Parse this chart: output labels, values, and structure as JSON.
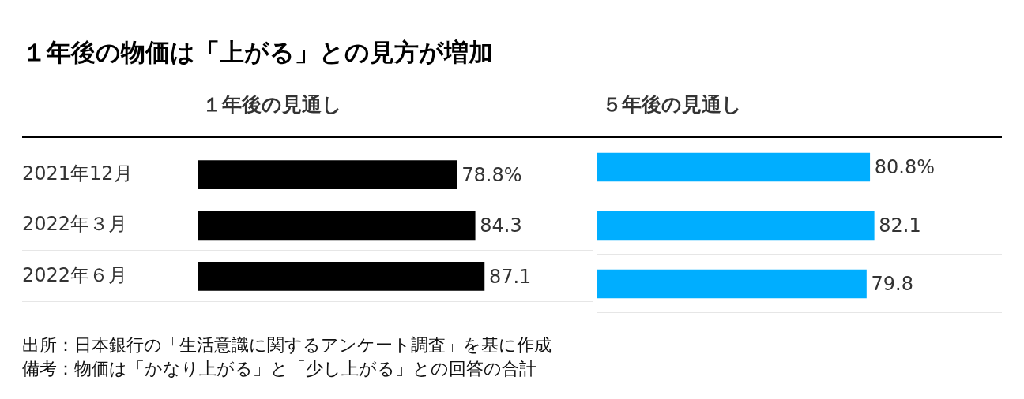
{
  "chart_data": [
    {
      "type": "bar",
      "orientation": "horizontal",
      "title": "１年後の物価は「上がる」との見方が増加",
      "subtitle": "１年後の見通し",
      "categories": [
        "2021年12月",
        "2022年３月",
        "2022年６月"
      ],
      "values": [
        78.8,
        84.3,
        87.1
      ],
      "color": "#000000",
      "value_labels": [
        "78.8%",
        "84.3",
        "87.1"
      ],
      "grid": "y",
      "tick_labels": "y",
      "legend": false,
      "annotations": [
        "出所：日本銀行の「生活意識に関するアンケート調査」を基に作成",
        "備考：物価は「かなり上がる」と「少し上がる」との回答の合計"
      ]
    },
    {
      "type": "bar",
      "orientation": "horizontal",
      "subtitle": "５年後の見通し",
      "categories": [
        null,
        null,
        null
      ],
      "values": [
        80.8,
        82.1,
        79.8
      ],
      "color": "#00aeff",
      "value_labels": [
        "80.8%",
        "82.1",
        "79.8"
      ],
      "grid": "y",
      "tick_labels": false,
      "legend": false
    }
  ]
}
